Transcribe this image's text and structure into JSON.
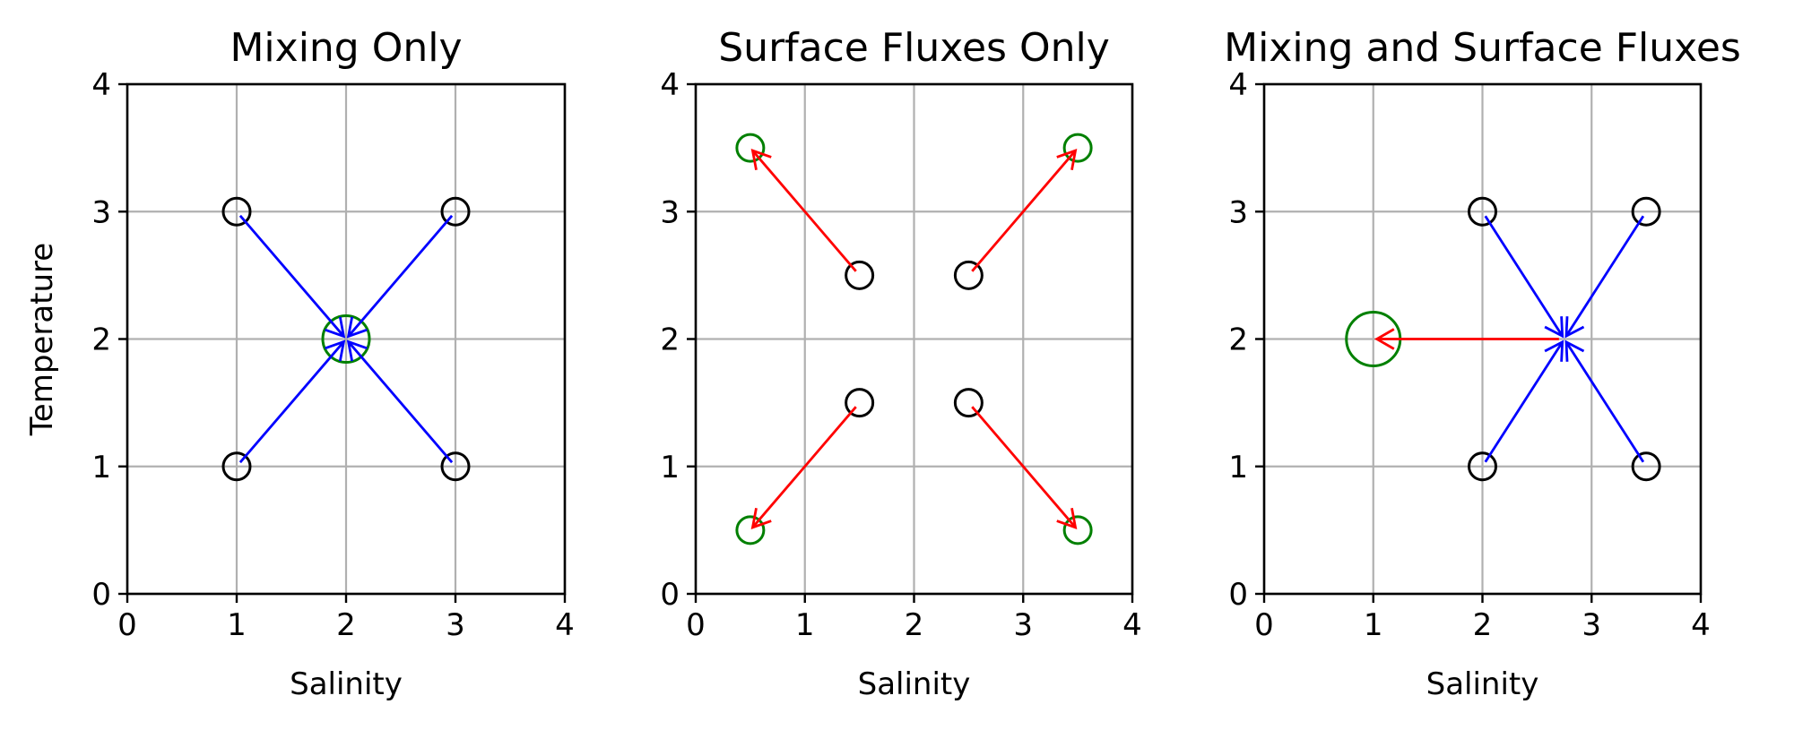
{
  "colors": {
    "grid": "#b0b0b0",
    "axes": "#000000",
    "start_marker": "#000000",
    "end_marker": "#008000",
    "mixing_arrow": "#0000ff",
    "flux_arrow": "#ff0000"
  },
  "chart_data": [
    {
      "type": "scatter",
      "title": "Mixing Only",
      "xlabel": "Salinity",
      "ylabel": "Temperature",
      "xlim": [
        0,
        4
      ],
      "ylim": [
        0,
        4
      ],
      "xticks": [
        "0",
        "1",
        "2",
        "3",
        "4"
      ],
      "yticks": [
        "0",
        "1",
        "2",
        "3",
        "4"
      ],
      "grid": true,
      "start_points": [
        {
          "x": 1,
          "y": 3
        },
        {
          "x": 3,
          "y": 3
        },
        {
          "x": 1,
          "y": 1
        },
        {
          "x": 3,
          "y": 1
        }
      ],
      "end_points": [
        {
          "x": 2,
          "y": 2,
          "size": "large"
        }
      ],
      "arrows": [
        {
          "from": [
            1,
            3
          ],
          "to": [
            2,
            2
          ],
          "kind": "mixing"
        },
        {
          "from": [
            3,
            3
          ],
          "to": [
            2,
            2
          ],
          "kind": "mixing"
        },
        {
          "from": [
            1,
            1
          ],
          "to": [
            2,
            2
          ],
          "kind": "mixing"
        },
        {
          "from": [
            3,
            1
          ],
          "to": [
            2,
            2
          ],
          "kind": "mixing"
        }
      ]
    },
    {
      "type": "scatter",
      "title": "Surface Fluxes Only",
      "xlabel": "Salinity",
      "ylabel": "",
      "xlim": [
        0,
        4
      ],
      "ylim": [
        0,
        4
      ],
      "xticks": [
        "0",
        "1",
        "2",
        "3",
        "4"
      ],
      "yticks": [
        "0",
        "1",
        "2",
        "3",
        "4"
      ],
      "grid": true,
      "start_points": [
        {
          "x": 1.5,
          "y": 2.5
        },
        {
          "x": 2.5,
          "y": 2.5
        },
        {
          "x": 1.5,
          "y": 1.5
        },
        {
          "x": 2.5,
          "y": 1.5
        }
      ],
      "end_points": [
        {
          "x": 0.5,
          "y": 3.5,
          "size": "small"
        },
        {
          "x": 3.5,
          "y": 3.5,
          "size": "small"
        },
        {
          "x": 0.5,
          "y": 0.5,
          "size": "small"
        },
        {
          "x": 3.5,
          "y": 0.5,
          "size": "small"
        }
      ],
      "arrows": [
        {
          "from": [
            1.5,
            2.5
          ],
          "to": [
            0.5,
            3.5
          ],
          "kind": "flux"
        },
        {
          "from": [
            2.5,
            2.5
          ],
          "to": [
            3.5,
            3.5
          ],
          "kind": "flux"
        },
        {
          "from": [
            1.5,
            1.5
          ],
          "to": [
            0.5,
            0.5
          ],
          "kind": "flux"
        },
        {
          "from": [
            2.5,
            1.5
          ],
          "to": [
            3.5,
            0.5
          ],
          "kind": "flux"
        }
      ]
    },
    {
      "type": "scatter",
      "title": "Mixing and Surface Fluxes",
      "xlabel": "Salinity",
      "ylabel": "",
      "xlim": [
        0,
        4
      ],
      "ylim": [
        0,
        4
      ],
      "xticks": [
        "0",
        "1",
        "2",
        "3",
        "4"
      ],
      "yticks": [
        "0",
        "1",
        "2",
        "3",
        "4"
      ],
      "grid": true,
      "start_points": [
        {
          "x": 2,
          "y": 3
        },
        {
          "x": 3.5,
          "y": 3
        },
        {
          "x": 2,
          "y": 1
        },
        {
          "x": 3.5,
          "y": 1
        }
      ],
      "end_points": [
        {
          "x": 1,
          "y": 2,
          "size": "xlarge"
        }
      ],
      "arrows": [
        {
          "from": [
            2,
            3
          ],
          "to": [
            2.75,
            2
          ],
          "kind": "mixing"
        },
        {
          "from": [
            3.5,
            3
          ],
          "to": [
            2.75,
            2
          ],
          "kind": "mixing"
        },
        {
          "from": [
            2,
            1
          ],
          "to": [
            2.75,
            2
          ],
          "kind": "mixing"
        },
        {
          "from": [
            3.5,
            1
          ],
          "to": [
            2.75,
            2
          ],
          "kind": "mixing"
        },
        {
          "from": [
            2.75,
            2
          ],
          "to": [
            1,
            2
          ],
          "kind": "flux"
        }
      ]
    }
  ]
}
